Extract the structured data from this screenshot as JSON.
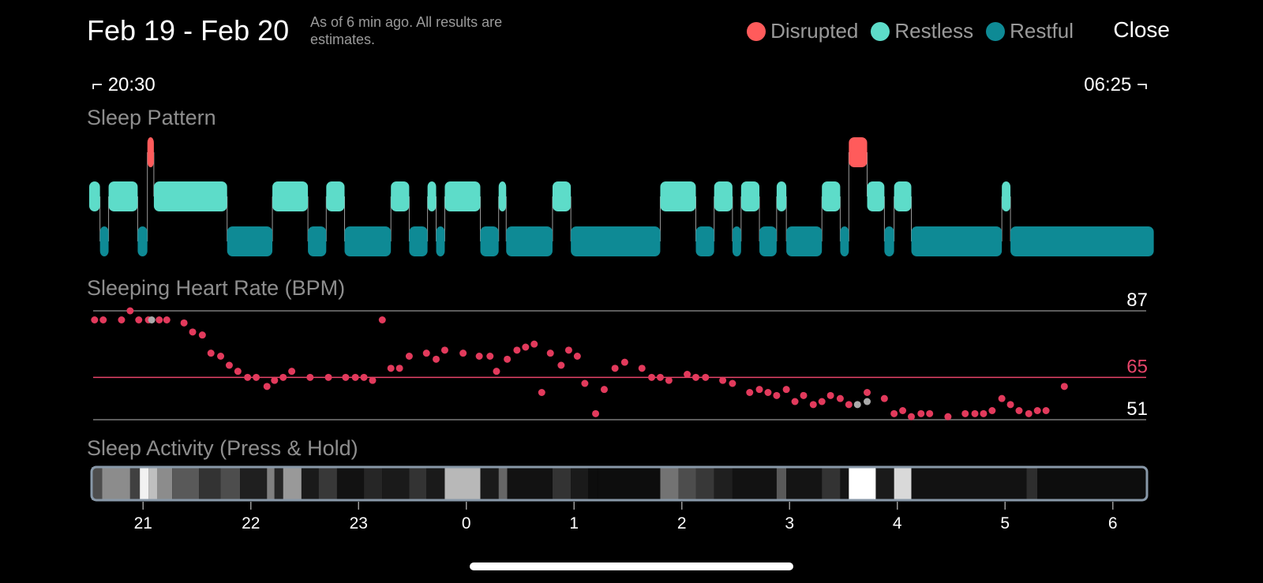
{
  "header": {
    "title": "Feb 19 - Feb 20",
    "note": "As of 6 min ago. All results are estimates.",
    "close_label": "Close"
  },
  "legend": [
    {
      "label": "Disrupted",
      "color": "#ff5b5b"
    },
    {
      "label": "Restless",
      "color": "#5ddcc9"
    },
    {
      "label": "Restful",
      "color": "#0e8a95"
    }
  ],
  "time_range": {
    "start": "20:30",
    "end": "06:25"
  },
  "sections": {
    "sleep_pattern": "Sleep Pattern",
    "heart_rate": "Sleeping Heart Rate (BPM)",
    "activity": "Sleep Activity (Press & Hold)"
  },
  "sleep_pattern": {
    "x_range_hours": [
      20.5,
      30.42
    ],
    "segments": [
      {
        "s": "restless",
        "a": 20.5,
        "b": 20.6
      },
      {
        "s": "restful",
        "a": 20.6,
        "b": 20.68
      },
      {
        "s": "restless",
        "a": 20.68,
        "b": 20.95
      },
      {
        "s": "restful",
        "a": 20.95,
        "b": 21.04
      },
      {
        "s": "disrupted",
        "a": 21.04,
        "b": 21.1
      },
      {
        "s": "restless",
        "a": 21.1,
        "b": 21.78
      },
      {
        "s": "restful",
        "a": 21.78,
        "b": 22.2
      },
      {
        "s": "restless",
        "a": 22.2,
        "b": 22.53
      },
      {
        "s": "restful",
        "a": 22.53,
        "b": 22.7
      },
      {
        "s": "restless",
        "a": 22.7,
        "b": 22.87
      },
      {
        "s": "restful",
        "a": 22.87,
        "b": 23.3
      },
      {
        "s": "restless",
        "a": 23.3,
        "b": 23.47
      },
      {
        "s": "restful",
        "a": 23.47,
        "b": 23.64
      },
      {
        "s": "restless",
        "a": 23.64,
        "b": 23.72
      },
      {
        "s": "restful",
        "a": 23.72,
        "b": 23.8
      },
      {
        "s": "restless",
        "a": 23.8,
        "b": 24.13
      },
      {
        "s": "restful",
        "a": 24.13,
        "b": 24.3
      },
      {
        "s": "restless",
        "a": 24.3,
        "b": 24.37
      },
      {
        "s": "restful",
        "a": 24.37,
        "b": 24.8
      },
      {
        "s": "restless",
        "a": 24.8,
        "b": 24.97
      },
      {
        "s": "restful",
        "a": 24.97,
        "b": 25.8
      },
      {
        "s": "restless",
        "a": 25.8,
        "b": 26.13
      },
      {
        "s": "restful",
        "a": 26.13,
        "b": 26.3
      },
      {
        "s": "restless",
        "a": 26.3,
        "b": 26.47
      },
      {
        "s": "restful",
        "a": 26.47,
        "b": 26.55
      },
      {
        "s": "restless",
        "a": 26.55,
        "b": 26.72
      },
      {
        "s": "restful",
        "a": 26.72,
        "b": 26.88
      },
      {
        "s": "restless",
        "a": 26.88,
        "b": 26.97
      },
      {
        "s": "restful",
        "a": 26.97,
        "b": 27.3
      },
      {
        "s": "restless",
        "a": 27.3,
        "b": 27.47
      },
      {
        "s": "restful",
        "a": 27.47,
        "b": 27.55
      },
      {
        "s": "disrupted",
        "a": 27.55,
        "b": 27.72
      },
      {
        "s": "restless",
        "a": 27.72,
        "b": 27.88
      },
      {
        "s": "restful",
        "a": 27.88,
        "b": 27.97
      },
      {
        "s": "restless",
        "a": 27.97,
        "b": 28.13
      },
      {
        "s": "restful",
        "a": 28.13,
        "b": 28.97
      },
      {
        "s": "restless",
        "a": 28.97,
        "b": 29.05
      },
      {
        "s": "restful",
        "a": 29.05,
        "b": 30.38
      }
    ]
  },
  "heart_rate": {
    "y_labels": {
      "max": "87",
      "avg": "65",
      "min": "51"
    },
    "y_values": {
      "max": 87,
      "avg": 65,
      "min": 51
    },
    "points": [
      [
        20.55,
        84
      ],
      [
        20.63,
        84
      ],
      [
        20.8,
        84
      ],
      [
        20.88,
        87
      ],
      [
        20.96,
        84
      ],
      [
        21.05,
        84
      ],
      [
        21.15,
        84
      ],
      [
        21.22,
        84
      ],
      [
        21.38,
        83
      ],
      [
        21.46,
        80
      ],
      [
        21.55,
        79
      ],
      [
        21.63,
        73
      ],
      [
        21.72,
        72
      ],
      [
        21.8,
        69
      ],
      [
        21.88,
        67
      ],
      [
        21.97,
        65
      ],
      [
        22.05,
        65
      ],
      [
        22.15,
        62
      ],
      [
        22.22,
        64
      ],
      [
        22.3,
        65
      ],
      [
        22.38,
        67
      ],
      [
        22.55,
        65
      ],
      [
        22.72,
        65
      ],
      [
        22.88,
        65
      ],
      [
        22.97,
        65
      ],
      [
        23.05,
        65
      ],
      [
        23.13,
        64
      ],
      [
        23.22,
        84
      ],
      [
        23.3,
        68
      ],
      [
        23.38,
        68
      ],
      [
        23.47,
        72
      ],
      [
        23.63,
        73
      ],
      [
        23.72,
        71
      ],
      [
        23.8,
        74
      ],
      [
        23.97,
        73
      ],
      [
        24.12,
        72
      ],
      [
        24.22,
        72
      ],
      [
        24.28,
        67
      ],
      [
        24.38,
        71
      ],
      [
        24.47,
        74
      ],
      [
        24.55,
        75
      ],
      [
        24.63,
        76
      ],
      [
        24.7,
        60
      ],
      [
        24.78,
        73
      ],
      [
        24.88,
        69
      ],
      [
        24.95,
        74
      ],
      [
        25.03,
        72
      ],
      [
        25.1,
        63
      ],
      [
        25.2,
        53
      ],
      [
        25.28,
        61
      ],
      [
        25.38,
        68
      ],
      [
        25.47,
        70
      ],
      [
        25.63,
        68
      ],
      [
        25.72,
        65
      ],
      [
        25.8,
        65
      ],
      [
        25.88,
        64
      ],
      [
        26.05,
        66
      ],
      [
        26.13,
        65
      ],
      [
        26.22,
        65
      ],
      [
        26.38,
        64
      ],
      [
        26.47,
        63
      ],
      [
        26.63,
        60
      ],
      [
        26.72,
        61
      ],
      [
        26.8,
        60
      ],
      [
        26.88,
        59
      ],
      [
        26.97,
        61
      ],
      [
        27.05,
        57
      ],
      [
        27.13,
        59
      ],
      [
        27.22,
        56
      ],
      [
        27.3,
        57
      ],
      [
        27.38,
        59
      ],
      [
        27.47,
        58
      ],
      [
        27.55,
        56
      ],
      [
        27.72,
        60
      ],
      [
        27.88,
        58
      ],
      [
        27.97,
        53
      ],
      [
        28.05,
        54
      ],
      [
        28.13,
        52
      ],
      [
        28.22,
        53
      ],
      [
        28.3,
        53
      ],
      [
        28.47,
        52
      ],
      [
        28.63,
        53
      ],
      [
        28.72,
        53
      ],
      [
        28.8,
        53
      ],
      [
        28.88,
        54
      ],
      [
        28.97,
        58
      ],
      [
        29.05,
        56
      ],
      [
        29.13,
        54
      ],
      [
        29.22,
        53
      ],
      [
        29.3,
        54
      ],
      [
        29.38,
        54
      ],
      [
        29.55,
        62
      ]
    ],
    "gray_points": [
      [
        21.08,
        84
      ],
      [
        27.63,
        56
      ],
      [
        27.72,
        57
      ]
    ]
  },
  "activity": {
    "bands": [
      {
        "a": 20.5,
        "b": 20.62,
        "v": 0.3
      },
      {
        "a": 20.62,
        "b": 20.88,
        "v": 0.55
      },
      {
        "a": 20.88,
        "b": 20.97,
        "v": 0.25
      },
      {
        "a": 20.97,
        "b": 21.05,
        "v": 0.95
      },
      {
        "a": 21.05,
        "b": 21.13,
        "v": 0.75
      },
      {
        "a": 21.13,
        "b": 21.27,
        "v": 0.55
      },
      {
        "a": 21.27,
        "b": 21.52,
        "v": 0.35
      },
      {
        "a": 21.52,
        "b": 21.72,
        "v": 0.2
      },
      {
        "a": 21.72,
        "b": 21.9,
        "v": 0.3
      },
      {
        "a": 21.9,
        "b": 22.15,
        "v": 0.12
      },
      {
        "a": 22.15,
        "b": 22.22,
        "v": 0.5
      },
      {
        "a": 22.22,
        "b": 22.3,
        "v": 0.15
      },
      {
        "a": 22.3,
        "b": 22.47,
        "v": 0.6
      },
      {
        "a": 22.47,
        "b": 22.63,
        "v": 0.1
      },
      {
        "a": 22.63,
        "b": 22.8,
        "v": 0.22
      },
      {
        "a": 22.8,
        "b": 23.05,
        "v": 0.07
      },
      {
        "a": 23.05,
        "b": 23.22,
        "v": 0.15
      },
      {
        "a": 23.22,
        "b": 23.47,
        "v": 0.1
      },
      {
        "a": 23.47,
        "b": 23.63,
        "v": 0.2
      },
      {
        "a": 23.63,
        "b": 23.8,
        "v": 0.1
      },
      {
        "a": 23.8,
        "b": 24.13,
        "v": 0.72
      },
      {
        "a": 24.13,
        "b": 24.3,
        "v": 0.1
      },
      {
        "a": 24.3,
        "b": 24.38,
        "v": 0.4
      },
      {
        "a": 24.38,
        "b": 24.8,
        "v": 0.07
      },
      {
        "a": 24.8,
        "b": 24.97,
        "v": 0.2
      },
      {
        "a": 24.97,
        "b": 25.13,
        "v": 0.1
      },
      {
        "a": 25.13,
        "b": 25.22,
        "v": 0.05
      },
      {
        "a": 25.22,
        "b": 25.8,
        "v": 0.05
      },
      {
        "a": 25.8,
        "b": 25.97,
        "v": 0.45
      },
      {
        "a": 25.97,
        "b": 26.13,
        "v": 0.3
      },
      {
        "a": 26.13,
        "b": 26.3,
        "v": 0.22
      },
      {
        "a": 26.3,
        "b": 26.47,
        "v": 0.12
      },
      {
        "a": 26.47,
        "b": 26.88,
        "v": 0.07
      },
      {
        "a": 26.88,
        "b": 26.97,
        "v": 0.35
      },
      {
        "a": 26.97,
        "b": 27.3,
        "v": 0.08
      },
      {
        "a": 27.3,
        "b": 27.47,
        "v": 0.2
      },
      {
        "a": 27.47,
        "b": 27.55,
        "v": 0.08
      },
      {
        "a": 27.55,
        "b": 27.8,
        "v": 1.0
      },
      {
        "a": 27.8,
        "b": 27.97,
        "v": 0.1
      },
      {
        "a": 27.97,
        "b": 28.13,
        "v": 0.85
      },
      {
        "a": 28.13,
        "b": 29.2,
        "v": 0.07
      },
      {
        "a": 29.2,
        "b": 29.3,
        "v": 0.18
      },
      {
        "a": 29.3,
        "b": 30.42,
        "v": 0.05
      }
    ],
    "ticks": [
      {
        "h": 21,
        "label": "21"
      },
      {
        "h": 22,
        "label": "22"
      },
      {
        "h": 23,
        "label": "23"
      },
      {
        "h": 24,
        "label": "0"
      },
      {
        "h": 25,
        "label": "1"
      },
      {
        "h": 26,
        "label": "2"
      },
      {
        "h": 27,
        "label": "3"
      },
      {
        "h": 28,
        "label": "4"
      },
      {
        "h": 29,
        "label": "5"
      },
      {
        "h": 30,
        "label": "6"
      }
    ]
  }
}
